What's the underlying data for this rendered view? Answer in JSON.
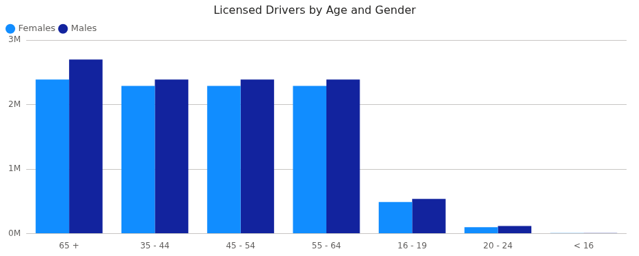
{
  "chart_data": {
    "type": "bar",
    "title": "Licensed Drivers by Age and Gender",
    "categories": [
      "65 +",
      "35 - 44",
      "45 - 54",
      "55 - 64",
      "16 - 19",
      "20 - 24",
      "< 16"
    ],
    "series": [
      {
        "name": "Females",
        "color": "#118DFF",
        "values": [
          2390000,
          2290000,
          2290000,
          2290000,
          490000,
          100000,
          10000
        ]
      },
      {
        "name": "Males",
        "color": "#12239E",
        "values": [
          2700000,
          2390000,
          2390000,
          2390000,
          540000,
          120000,
          10000
        ]
      }
    ],
    "ylim": [
      0,
      3000000
    ],
    "yticks": [
      {
        "value": 0,
        "label": "0M"
      },
      {
        "value": 1000000,
        "label": "1M"
      },
      {
        "value": 2000000,
        "label": "2M"
      },
      {
        "value": 3000000,
        "label": "3M"
      }
    ],
    "grid": true,
    "legend": "top-left"
  }
}
